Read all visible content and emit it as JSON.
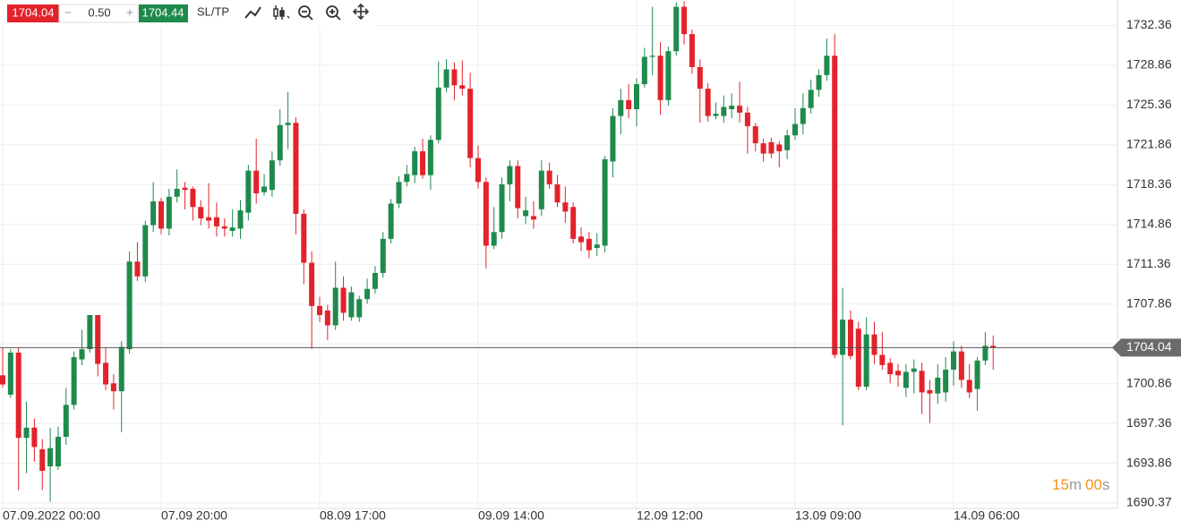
{
  "toolbar": {
    "bid": 1704.04,
    "minus": "−",
    "lot": "0.50",
    "plus": "+",
    "ask": 1704.44,
    "sltp": "SL/TP"
  },
  "chart_data": {
    "type": "candlestick",
    "x": [
      "07.09.2022 00:00",
      null,
      null,
      null,
      null,
      null,
      null,
      null,
      null,
      null,
      null,
      null,
      null,
      null,
      null,
      null,
      null,
      null,
      null,
      null,
      "07.09 20:00",
      null,
      null,
      null,
      null,
      null,
      null,
      null,
      null,
      null,
      null,
      null,
      null,
      null,
      null,
      null,
      null,
      null,
      null,
      null,
      "08.09 17:00",
      null,
      null,
      null,
      null,
      null,
      null,
      null,
      null,
      null,
      null,
      null,
      null,
      null,
      null,
      null,
      null,
      null,
      null,
      null,
      "09.09 14:00",
      null,
      null,
      null,
      null,
      null,
      null,
      null,
      null,
      null,
      null,
      null,
      null,
      null,
      null,
      null,
      null,
      null,
      null,
      null,
      "12.09 12:00",
      null,
      null,
      null,
      null,
      null,
      null,
      null,
      null,
      null,
      null,
      null,
      null,
      null,
      null,
      null,
      null,
      null,
      null,
      null,
      "13.09 09:00",
      null,
      null,
      null,
      null,
      null,
      null,
      null,
      null,
      null,
      null,
      null,
      null,
      null,
      null,
      null,
      null,
      null,
      null,
      null,
      "14.09 06:00",
      null,
      null,
      null,
      null,
      null
    ],
    "open": [
      1701.6,
      1699.9,
      1703.6,
      1696.1,
      1697,
      1695.1,
      1693.6,
      1693.6,
      1696.2,
      1699,
      1703,
      1703.9,
      1706.9,
      1702.7,
      1700.9,
      1700.2,
      1703.9,
      1711.6,
      1710.3,
      1714.8,
      1716.9,
      1714.5,
      1717.3,
      1718.1,
      1718,
      1716.4,
      1715.5,
      1715.5,
      1714.7,
      1714.3,
      1714.5,
      1715.9,
      1719.6,
      1717.7,
      1717.9,
      1720.5,
      1723.6,
      1723.8,
      1715.8,
      1711.5,
      1707.7,
      1707.3,
      1706,
      1709.3,
      1706.7,
      1706.7,
      1708.3,
      1709.2,
      1710.6,
      1713.6,
      1716.7,
      1718.6,
      1719.2,
      1721.3,
      1719.2,
      1722.3,
      1726.9,
      1728.5,
      1727.1,
      1726.8,
      1720.7,
      1718.6,
      1713,
      1714.2,
      1718.4,
      1720,
      1715.6,
      1715.6,
      1716.2,
      1719.6,
      1718.4,
      1716.8,
      1716.4,
      1713.8,
      1713.6,
      1712.8,
      1713,
      1720.4,
      1724.4,
      1725.8,
      1725,
      1727.2,
      1729.6,
      1729.7,
      1725.8,
      1730.1,
      1734,
      1731.6,
      1728.7,
      1726.8,
      1724.4,
      1724.4,
      1725,
      1725.3,
      1724.7,
      1723.5,
      1722,
      1722.1,
      1721.9,
      1721.4,
      1722.7,
      1723.7,
      1725.1,
      1726.7,
      1728,
      1729.7,
      1703.4,
      1706.5,
      1705.7,
      1700.6,
      1705.2,
      1703.4,
      1702.7,
      1702,
      1700.5,
      1701.9,
      1702,
      1700.3,
      1700,
      1700.1,
      1702.1,
      1703.7,
      1701.2,
      1700.4,
      1702.9,
      1704.2
    ],
    "high": [
      1704,
      1703.9,
      1704,
      1699.3,
      1697.8,
      1696,
      1697,
      1697.1,
      1700.5,
      1703.7,
      1705.6,
      1706.9,
      1706.9,
      1704,
      1701.7,
      1704.6,
      1712.5,
      1713.3,
      1715.2,
      1718.6,
      1717.2,
      1718,
      1719.7,
      1718.6,
      1718.2,
      1717,
      1718.5,
      1716.8,
      1715.4,
      1716.2,
      1717,
      1720.1,
      1722.4,
      1719.3,
      1721.3,
      1725,
      1726.5,
      1724.3,
      1716.2,
      1712.5,
      1708.5,
      1707.8,
      1711.6,
      1710.3,
      1709.4,
      1708.6,
      1710.1,
      1711.2,
      1714.2,
      1717.1,
      1719.1,
      1720.1,
      1721.7,
      1722.4,
      1722.7,
      1729.2,
      1729.4,
      1729.1,
      1729.3,
      1728.2,
      1721.8,
      1719,
      1716.4,
      1719,
      1720.5,
      1720.5,
      1717.3,
      1716.9,
      1720.5,
      1720.3,
      1719.2,
      1718.2,
      1716.8,
      1714.6,
      1714.2,
      1714.1,
      1720.9,
      1725.1,
      1726.8,
      1727.2,
      1727.7,
      1730.4,
      1734,
      1730.9,
      1730.5,
      1734.4,
      1734.5,
      1732,
      1729.4,
      1727.3,
      1725.6,
      1726.2,
      1726.4,
      1727.4,
      1725.2,
      1723.8,
      1722.4,
      1722.5,
      1722.2,
      1723.2,
      1725.1,
      1726.4,
      1727.6,
      1728.5,
      1731.2,
      1731.6,
      1709.3,
      1707.3,
      1706.3,
      1706.7,
      1706.3,
      1705.4,
      1703.1,
      1702.6,
      1702.6,
      1703,
      1702.7,
      1701.2,
      1702.6,
      1703.2,
      1704.6,
      1704.2,
      1702.6,
      1703.2,
      1705.4,
      1705.1
    ],
    "low": [
      1700.5,
      1699.6,
      1691.5,
      1693,
      1694,
      1691.5,
      1690.5,
      1693.3,
      1695.5,
      1698.6,
      1702.5,
      1703.6,
      1701.5,
      1700.3,
      1698.6,
      1696.6,
      1703.5,
      1709.9,
      1709.8,
      1714.2,
      1714,
      1713.9,
      1716.8,
      1716.2,
      1715.2,
      1714.8,
      1714.5,
      1713.8,
      1713.8,
      1713.8,
      1713.6,
      1715.2,
      1716.7,
      1717.4,
      1717.3,
      1720,
      1721.5,
      1714,
      1709.6,
      1703.9,
      1706.3,
      1704.7,
      1705.6,
      1706.4,
      1706.4,
      1706.3,
      1707.9,
      1708.8,
      1710.2,
      1713.2,
      1716.3,
      1718.2,
      1718.5,
      1718.9,
      1717.9,
      1722,
      1726.5,
      1725.8,
      1726.2,
      1719.9,
      1718,
      1711,
      1712.7,
      1713.6,
      1716.9,
      1715.4,
      1714.9,
      1714.5,
      1715.6,
      1718,
      1716.4,
      1715,
      1713.2,
      1712.5,
      1711.9,
      1712.1,
      1712.4,
      1719,
      1722.8,
      1724.2,
      1723.5,
      1726.9,
      1728,
      1724.5,
      1725.3,
      1729.7,
      1730.7,
      1728.1,
      1723.8,
      1723.9,
      1724.1,
      1723.8,
      1724.2,
      1723.8,
      1721.1,
      1721.3,
      1720.4,
      1720.7,
      1719.9,
      1720.6,
      1722.3,
      1722.8,
      1724.6,
      1726.1,
      1727.5,
      1703.1,
      1697.2,
      1703,
      1700.3,
      1700.3,
      1702.6,
      1702.1,
      1700.9,
      1700.6,
      1699.7,
      1700,
      1698.2,
      1697.4,
      1699.1,
      1699.3,
      1700.7,
      1700.5,
      1699.6,
      1698.5,
      1702.5,
      1702.1
    ],
    "close": [
      1700.8,
      1703.6,
      1696.1,
      1697,
      1695.3,
      1693.2,
      1695.2,
      1696.2,
      1699,
      1703.2,
      1703.9,
      1706.9,
      1702.6,
      1700.8,
      1700.2,
      1704.1,
      1711.6,
      1710.3,
      1714.8,
      1716.9,
      1714.5,
      1717.3,
      1718,
      1717.9,
      1716.4,
      1715.4,
      1715.2,
      1714.7,
      1714.5,
      1714.6,
      1716.1,
      1719.6,
      1717.6,
      1718.2,
      1720.5,
      1723.6,
      1723.8,
      1715.8,
      1711.5,
      1707.7,
      1706.9,
      1706,
      1709.3,
      1707.1,
      1708.9,
      1708.3,
      1709.2,
      1710.6,
      1713.6,
      1716.7,
      1718.6,
      1719.3,
      1721.3,
      1719.2,
      1722.3,
      1726.9,
      1728.5,
      1727.1,
      1726.8,
      1720.7,
      1718.6,
      1713,
      1714.2,
      1718.4,
      1720,
      1716.3,
      1716.1,
      1715.3,
      1719.6,
      1718.4,
      1716.8,
      1716,
      1713.6,
      1713.3,
      1712.6,
      1713.1,
      1720.6,
      1724.4,
      1725.8,
      1725,
      1727.2,
      1729.6,
      1729.7,
      1725.8,
      1730.1,
      1734,
      1731.6,
      1728.7,
      1726.8,
      1724.4,
      1724.6,
      1725.2,
      1725.3,
      1724.7,
      1723.5,
      1722,
      1721.1,
      1721.1,
      1721.3,
      1722.7,
      1723.7,
      1725.1,
      1726.7,
      1728,
      1729.7,
      1703.4,
      1706.5,
      1703.3,
      1700.6,
      1705.2,
      1703.4,
      1702.5,
      1701.7,
      1701.6,
      1701.9,
      1702.2,
      1700.1,
      1700,
      1701.4,
      1702.1,
      1703.7,
      1701.2,
      1700.1,
      1702.9,
      1704.2,
      1704.04
    ],
    "up_color": "#1e8a4c",
    "down_color": "#e3222b",
    "ylim": [
      1689.9,
      1734.6
    ],
    "yticks": [
      1690.37,
      1693.86,
      1697.36,
      1700.86,
      1704.36,
      1707.86,
      1711.36,
      1714.86,
      1718.36,
      1721.86,
      1725.36,
      1728.86,
      1732.36
    ],
    "grid": true,
    "last_price": 1704.04,
    "timer": {
      "minutes": "15",
      "minutes_unit": "m",
      "seconds": "00",
      "seconds_unit": "s"
    }
  }
}
